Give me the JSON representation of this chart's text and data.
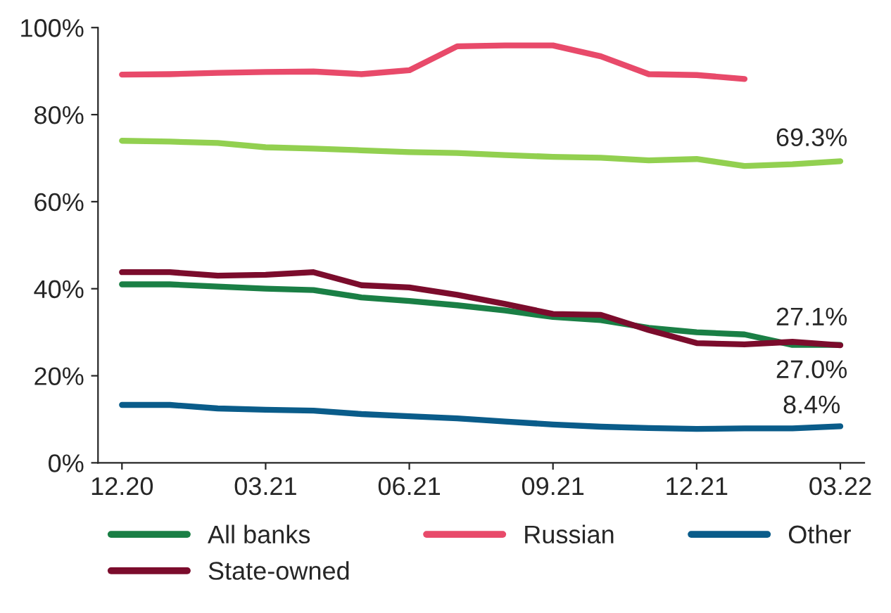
{
  "chart_data": {
    "type": "line",
    "categories": [
      "12.20",
      null,
      null,
      "03.21",
      null,
      null,
      "06.21",
      null,
      null,
      "09.21",
      null,
      null,
      "12.21",
      null,
      null,
      "03.22"
    ],
    "series": [
      {
        "name": "All banks",
        "color": "#1a7f45",
        "values": [
          41.0,
          41.0,
          40.5,
          40.0,
          39.7,
          38.0,
          37.2,
          36.2,
          35.0,
          33.5,
          32.8,
          31.0,
          30.0,
          29.5,
          27.1,
          27.1
        ]
      },
      {
        "color": "#92d050",
        "values": [
          74.0,
          73.8,
          73.5,
          72.5,
          72.2,
          71.8,
          71.4,
          71.2,
          70.7,
          70.3,
          70.1,
          69.5,
          69.8,
          68.2,
          68.6,
          69.3
        ]
      },
      {
        "name": "State-owned",
        "color": "#7b0c2c",
        "values": [
          43.8,
          43.8,
          43.0,
          43.2,
          43.8,
          40.8,
          40.3,
          38.6,
          36.5,
          34.2,
          34.0,
          30.5,
          27.5,
          27.2,
          27.8,
          27.0
        ]
      },
      {
        "name": "Russian",
        "color": "#e84a6a",
        "values": [
          89.2,
          89.3,
          89.6,
          89.8,
          89.9,
          89.3,
          90.2,
          95.7,
          95.9,
          95.9,
          93.4,
          89.3,
          89.1,
          88.2,
          null,
          null
        ]
      },
      {
        "name": "Other",
        "color": "#0a5c8a",
        "values": [
          13.3,
          13.3,
          12.5,
          12.2,
          12.0,
          11.2,
          10.7,
          10.2,
          9.5,
          8.8,
          8.3,
          8.0,
          7.8,
          7.9,
          7.9,
          8.4
        ]
      }
    ],
    "ylim": [
      0,
      100
    ],
    "yticks": [
      {
        "value": 0,
        "label": "0%"
      },
      {
        "value": 20,
        "label": "20%"
      },
      {
        "value": 40,
        "label": "40%"
      },
      {
        "value": 60,
        "label": "60%"
      },
      {
        "value": 80,
        "label": "80%"
      },
      {
        "value": 100,
        "label": "100%"
      }
    ],
    "annotations": [
      {
        "text": "69.3%",
        "x": "03.22",
        "y": 69.3
      },
      {
        "text": "27.1%",
        "x": "03.22",
        "y": 27.1
      },
      {
        "text": "27.0%",
        "x": "03.22",
        "y": 27.0
      },
      {
        "text": "8.4%",
        "x": "03.22",
        "y": 8.4
      }
    ],
    "grid": false,
    "legend": "bottom",
    "marker": "none",
    "line_style": "solid"
  }
}
